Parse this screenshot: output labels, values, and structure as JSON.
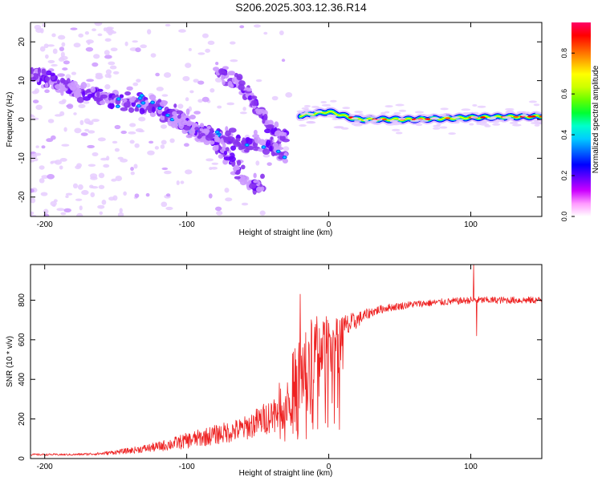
{
  "title": "S206.2025.303.12.36.R14",
  "chart_data": [
    {
      "type": "heatmap",
      "name": "spectrogram",
      "title": "S206.2025.303.12.36.R14",
      "xlabel": "Height of straight line (km)",
      "ylabel": "Frequency (Hz)",
      "xlim": [
        -210,
        150
      ],
      "ylim": [
        -25,
        25
      ],
      "x_ticks": [
        -200,
        -100,
        0,
        100
      ],
      "y_ticks": [
        -20,
        -10,
        0,
        10,
        20
      ],
      "colorbar": {
        "label": "Normalized spectral amplitude",
        "range": [
          0.0,
          0.95
        ],
        "ticks": [
          "0.0",
          "0.2",
          "0.4",
          "0.6",
          "0.8"
        ],
        "colors": [
          "#ffffff",
          "#ff99ff",
          "#cc00ff",
          "#6600ff",
          "#0000ff",
          "#0066ff",
          "#00ccff",
          "#00ffcc",
          "#00ff33",
          "#66ff00",
          "#ccff00",
          "#ffff00",
          "#ffaa00",
          "#ff5500",
          "#ff0000",
          "#ff0066"
        ]
      },
      "ridges": [
        {
          "name": "main-descending-branch",
          "points": [
            [
              -210,
              12
            ],
            [
              -180,
              8
            ],
            [
              -150,
              5
            ],
            [
              -120,
              3
            ],
            [
              -100,
              -2
            ],
            [
              -80,
              -4
            ],
            [
              -60,
              -6
            ],
            [
              -40,
              -7
            ],
            [
              -30,
              -10
            ]
          ]
        },
        {
          "name": "lower-branch",
          "points": [
            [
              -110,
              2
            ],
            [
              -90,
              -3
            ],
            [
              -75,
              -8
            ],
            [
              -65,
              -13
            ],
            [
              -55,
              -16
            ],
            [
              -45,
              -18
            ]
          ]
        },
        {
          "name": "upper-branch",
          "points": [
            [
              -80,
              12
            ],
            [
              -70,
              11
            ],
            [
              -60,
              8
            ],
            [
              -50,
              3
            ],
            [
              -40,
              -3
            ],
            [
              -30,
              -5
            ]
          ]
        },
        {
          "name": "converged-carrier",
          "points": [
            [
              -20,
              1
            ],
            [
              0,
              2
            ],
            [
              20,
              0
            ],
            [
              60,
              0
            ],
            [
              100,
              0.5
            ],
            [
              150,
              0.8
            ]
          ]
        }
      ]
    },
    {
      "type": "line",
      "name": "snr",
      "xlabel": "Height of straight line (km)",
      "ylabel": "SNR (10 * v/v)",
      "xlim": [
        -210,
        150
      ],
      "ylim": [
        0,
        980
      ],
      "x_ticks": [
        -200,
        -100,
        0,
        100
      ],
      "y_ticks": [
        0,
        200,
        400,
        600,
        800
      ],
      "color": "#ee2222",
      "series": [
        {
          "name": "SNR",
          "x": [
            -210,
            -180,
            -160,
            -140,
            -120,
            -100,
            -80,
            -60,
            -40,
            -30,
            -20,
            -10,
            0,
            10,
            20,
            30,
            40,
            60,
            80,
            100,
            120,
            150
          ],
          "y": [
            20,
            20,
            25,
            40,
            60,
            90,
            120,
            150,
            220,
            300,
            420,
            550,
            600,
            650,
            700,
            740,
            760,
            780,
            790,
            800,
            800,
            800
          ],
          "noise_amplitude": [
            5,
            5,
            8,
            15,
            25,
            40,
            50,
            60,
            90,
            150,
            220,
            180,
            120,
            80,
            40,
            25,
            20,
            18,
            18,
            18,
            18,
            18
          ]
        }
      ],
      "spikes": [
        {
          "x": -20,
          "y": 830
        },
        {
          "x": 102,
          "y": 980
        },
        {
          "x": 104,
          "y": 620
        }
      ]
    }
  ]
}
